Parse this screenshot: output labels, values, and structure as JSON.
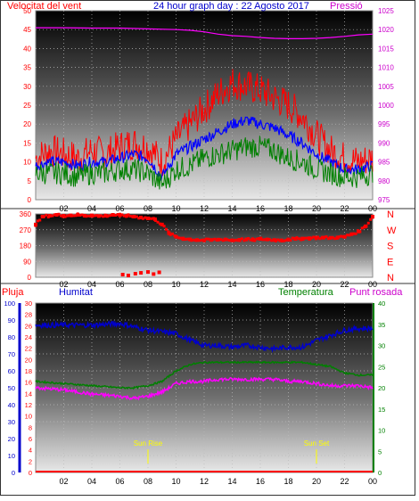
{
  "header": {
    "wind_label": "Velocitat del vent",
    "title": "24 hour graph day : 22 Agosto 2017",
    "pressure_label": "Pressió"
  },
  "bottom_header": {
    "rain_label": "Pluja",
    "humidity_label": "Humitat",
    "temperature_label": "Temperatura",
    "dewpoint_label": "Punt rosada"
  },
  "annotations": {
    "sunrise": "Sun Rise",
    "sunset": "Sun Set"
  },
  "colors": {
    "wind_max": "#ff0000",
    "wind_avg": "#0000ff",
    "wind_min": "#008000",
    "pressure": "#ff00ff",
    "direction": "#ff0000",
    "humidity": "#0000cc",
    "temperature": "#008000",
    "dewpoint": "#ff00ff",
    "rain": "#ff0000"
  },
  "chart_data": [
    {
      "type": "line",
      "name": "wind_pressure",
      "x_ticks": [
        "02",
        "04",
        "06",
        "08",
        "10",
        "12",
        "14",
        "16",
        "18",
        "20",
        "22",
        "00"
      ],
      "xlim": [
        0,
        24
      ],
      "ylim_left": [
        0,
        50
      ],
      "yticks_left": [
        0,
        5,
        10,
        15,
        20,
        25,
        30,
        35,
        40,
        45,
        50
      ],
      "ylim_right": [
        975,
        1025
      ],
      "yticks_right": [
        975,
        980,
        985,
        990,
        995,
        1000,
        1005,
        1010,
        1015,
        1020,
        1025
      ],
      "series": [
        {
          "key": "wind_max",
          "axis": "left",
          "x": [
            0,
            1,
            2,
            3,
            4,
            5,
            6,
            7,
            8,
            9,
            10,
            11,
            12,
            13,
            14,
            15,
            16,
            17,
            18,
            19,
            20,
            21,
            22,
            23,
            24
          ],
          "values": [
            11,
            13,
            12,
            11,
            13,
            12,
            14,
            15,
            14,
            10,
            16,
            20,
            24,
            28,
            31,
            30,
            29,
            27,
            25,
            22,
            17,
            13,
            11,
            10,
            11
          ]
        },
        {
          "key": "wind_avg",
          "axis": "left",
          "x": [
            0,
            1,
            2,
            3,
            4,
            5,
            6,
            7,
            8,
            9,
            10,
            11,
            12,
            13,
            14,
            15,
            16,
            17,
            18,
            19,
            20,
            21,
            22,
            23,
            24
          ],
          "values": [
            9,
            10,
            10,
            9,
            10,
            10,
            11,
            12,
            11,
            6,
            12,
            14,
            16,
            18,
            20,
            21,
            20,
            19,
            17,
            15,
            12,
            10,
            8,
            8,
            9
          ]
        },
        {
          "key": "wind_min",
          "axis": "left",
          "x": [
            0,
            1,
            2,
            3,
            4,
            5,
            6,
            7,
            8,
            9,
            10,
            11,
            12,
            13,
            14,
            15,
            16,
            17,
            18,
            19,
            20,
            21,
            22,
            23,
            24
          ],
          "values": [
            7,
            7,
            7,
            6,
            7,
            7,
            8,
            8,
            7,
            4,
            8,
            9,
            11,
            12,
            13,
            14,
            14,
            13,
            11,
            10,
            8,
            7,
            6,
            6,
            7
          ]
        },
        {
          "key": "pressure",
          "axis": "right",
          "x": [
            0,
            2,
            4,
            6,
            8,
            10,
            11,
            12,
            13,
            14,
            15,
            16,
            17,
            18,
            19,
            20,
            21,
            22,
            23,
            24
          ],
          "values": [
            1020.5,
            1020.5,
            1020.4,
            1020.4,
            1020.2,
            1020.0,
            1019.8,
            1019.4,
            1018.8,
            1018.4,
            1018.2,
            1017.9,
            1017.7,
            1017.6,
            1017.6,
            1017.7,
            1017.9,
            1018.2,
            1018.6,
            1018.8
          ]
        }
      ]
    },
    {
      "type": "scatter",
      "name": "wind_direction",
      "x_ticks": [
        "02",
        "04",
        "06",
        "08",
        "10",
        "12",
        "14",
        "16",
        "18",
        "20",
        "22",
        "00"
      ],
      "ylim": [
        0,
        360
      ],
      "yticks": [
        0,
        90,
        180,
        270,
        360
      ],
      "compass_labels": [
        "N",
        "W",
        "S",
        "E",
        "N"
      ],
      "series": [
        {
          "key": "direction",
          "x": [
            0,
            0.5,
            1,
            1.5,
            2,
            2.5,
            3,
            3.5,
            4,
            4.5,
            5,
            5.5,
            6,
            6.5,
            7,
            7.5,
            8,
            8.5,
            9,
            9.5,
            10,
            10.5,
            11,
            11.5,
            12,
            12.5,
            13,
            13.5,
            14,
            14.5,
            15,
            15.5,
            16,
            16.5,
            17,
            17.5,
            18,
            18.5,
            19,
            19.5,
            20,
            20.5,
            21,
            21.5,
            22,
            22.5,
            23,
            23.5,
            24,
            6.2,
            6.6,
            7.1,
            7.5,
            8.0,
            8.4,
            8.8
          ],
          "values": [
            300,
            345,
            350,
            355,
            350,
            352,
            355,
            350,
            352,
            348,
            350,
            355,
            352,
            350,
            345,
            340,
            335,
            330,
            300,
            250,
            230,
            220,
            215,
            212,
            210,
            212,
            214,
            215,
            210,
            213,
            215,
            212,
            218,
            215,
            212,
            210,
            215,
            218,
            220,
            222,
            225,
            225,
            224,
            226,
            230,
            245,
            260,
            290,
            345,
            15,
            10,
            20,
            25,
            30,
            18,
            28
          ]
        }
      ]
    },
    {
      "type": "line",
      "name": "humidity_temperature",
      "x_ticks": [
        "02",
        "04",
        "06",
        "08",
        "10",
        "12",
        "14",
        "16",
        "18",
        "20",
        "22",
        "00"
      ],
      "ylim_rain": [
        0,
        30
      ],
      "yticks_rain": [
        0,
        2,
        4,
        6,
        8,
        10,
        12,
        14,
        16,
        18,
        20,
        22,
        24,
        26,
        28,
        30
      ],
      "ylim_humidity": [
        0,
        100
      ],
      "yticks_humidity": [
        0,
        10,
        20,
        30,
        40,
        50,
        60,
        70,
        80,
        90,
        100
      ],
      "ylim_temperature": [
        0,
        40
      ],
      "yticks_temperature": [
        0,
        5,
        10,
        15,
        20,
        25,
        30,
        35,
        40
      ],
      "series": [
        {
          "key": "humidity",
          "axis": "humidity",
          "x": [
            0,
            2,
            4,
            6,
            7,
            8,
            9,
            10,
            11,
            12,
            13,
            14,
            15,
            16,
            17,
            18,
            19,
            20,
            21,
            22,
            23,
            24
          ],
          "values": [
            87,
            87,
            87,
            88,
            86,
            84,
            83,
            82,
            78,
            75,
            75,
            74,
            75,
            74,
            73,
            74,
            74,
            78,
            81,
            84,
            85,
            85
          ]
        },
        {
          "key": "temperature",
          "axis": "temperature",
          "x": [
            0,
            2,
            4,
            6,
            7,
            8,
            9,
            10,
            11,
            12,
            13,
            14,
            15,
            16,
            17,
            18,
            19,
            20,
            21,
            22,
            23,
            24
          ],
          "values": [
            21.5,
            21,
            20.5,
            20,
            20,
            20.5,
            21.5,
            24,
            25.5,
            26,
            26,
            26,
            26,
            26,
            26,
            26,
            26,
            25.5,
            25,
            23.5,
            23,
            23
          ]
        },
        {
          "key": "dewpoint",
          "axis": "temperature",
          "x": [
            0,
            2,
            4,
            6,
            7,
            8,
            9,
            10,
            11,
            12,
            13,
            14,
            15,
            16,
            17,
            18,
            19,
            20,
            21,
            22,
            23,
            24
          ],
          "values": [
            20,
            19.5,
            18.5,
            18,
            17.5,
            18,
            19,
            21,
            21.5,
            21.5,
            22,
            22,
            22,
            22,
            22,
            21.5,
            21.5,
            21,
            20.5,
            20.5,
            20.5,
            20
          ]
        },
        {
          "key": "rain",
          "axis": "rain",
          "x": [
            0,
            24
          ],
          "values": [
            0,
            0
          ]
        }
      ],
      "events": [
        {
          "label": "Sun Rise",
          "x": 8
        },
        {
          "label": "Sun Set",
          "x": 20
        }
      ]
    }
  ]
}
